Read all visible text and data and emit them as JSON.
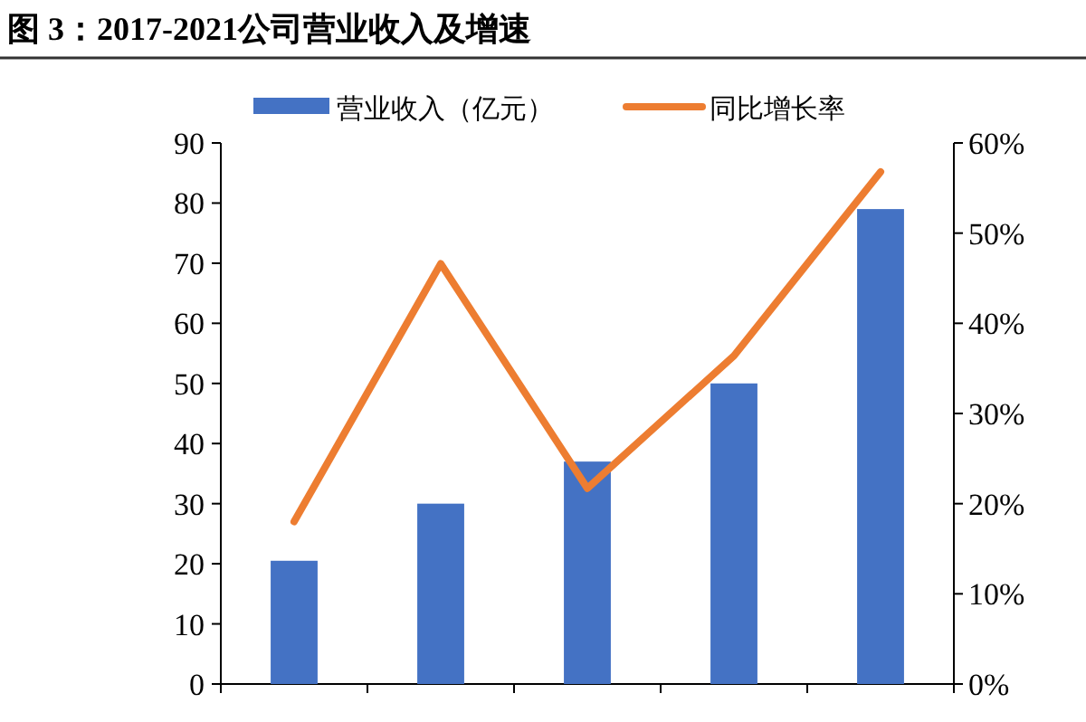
{
  "chart_data": {
    "type": "bar",
    "title": "图 3：2017-2021公司营业收入及增速",
    "categories": [
      null,
      null,
      null,
      null,
      null
    ],
    "series": [
      {
        "name": "营业收入（亿元）",
        "color": "#4472c4",
        "values": [
          20.5,
          30,
          37,
          50,
          79
        ]
      },
      {
        "name": "同比增长率",
        "type": "line",
        "axis": "y2",
        "color": "#ed7d31",
        "values": [
          18,
          46.6,
          21.7,
          36.4,
          56.8
        ]
      }
    ],
    "ylim": [
      0,
      90
    ],
    "yticks": [
      0,
      10,
      20,
      30,
      40,
      50,
      60,
      70,
      80,
      90
    ],
    "y2lim": [
      0,
      60
    ],
    "y2ticks": [
      {
        "value": 0,
        "label": "0%"
      },
      {
        "value": 10,
        "label": "10%"
      },
      {
        "value": 20,
        "label": "20%"
      },
      {
        "value": 30,
        "label": "30%"
      },
      {
        "value": 40,
        "label": "40%"
      },
      {
        "value": 50,
        "label": "50%"
      },
      {
        "value": 60,
        "label": "60%"
      }
    ],
    "legend": "top",
    "marker": "none",
    "line_style": "solid"
  }
}
